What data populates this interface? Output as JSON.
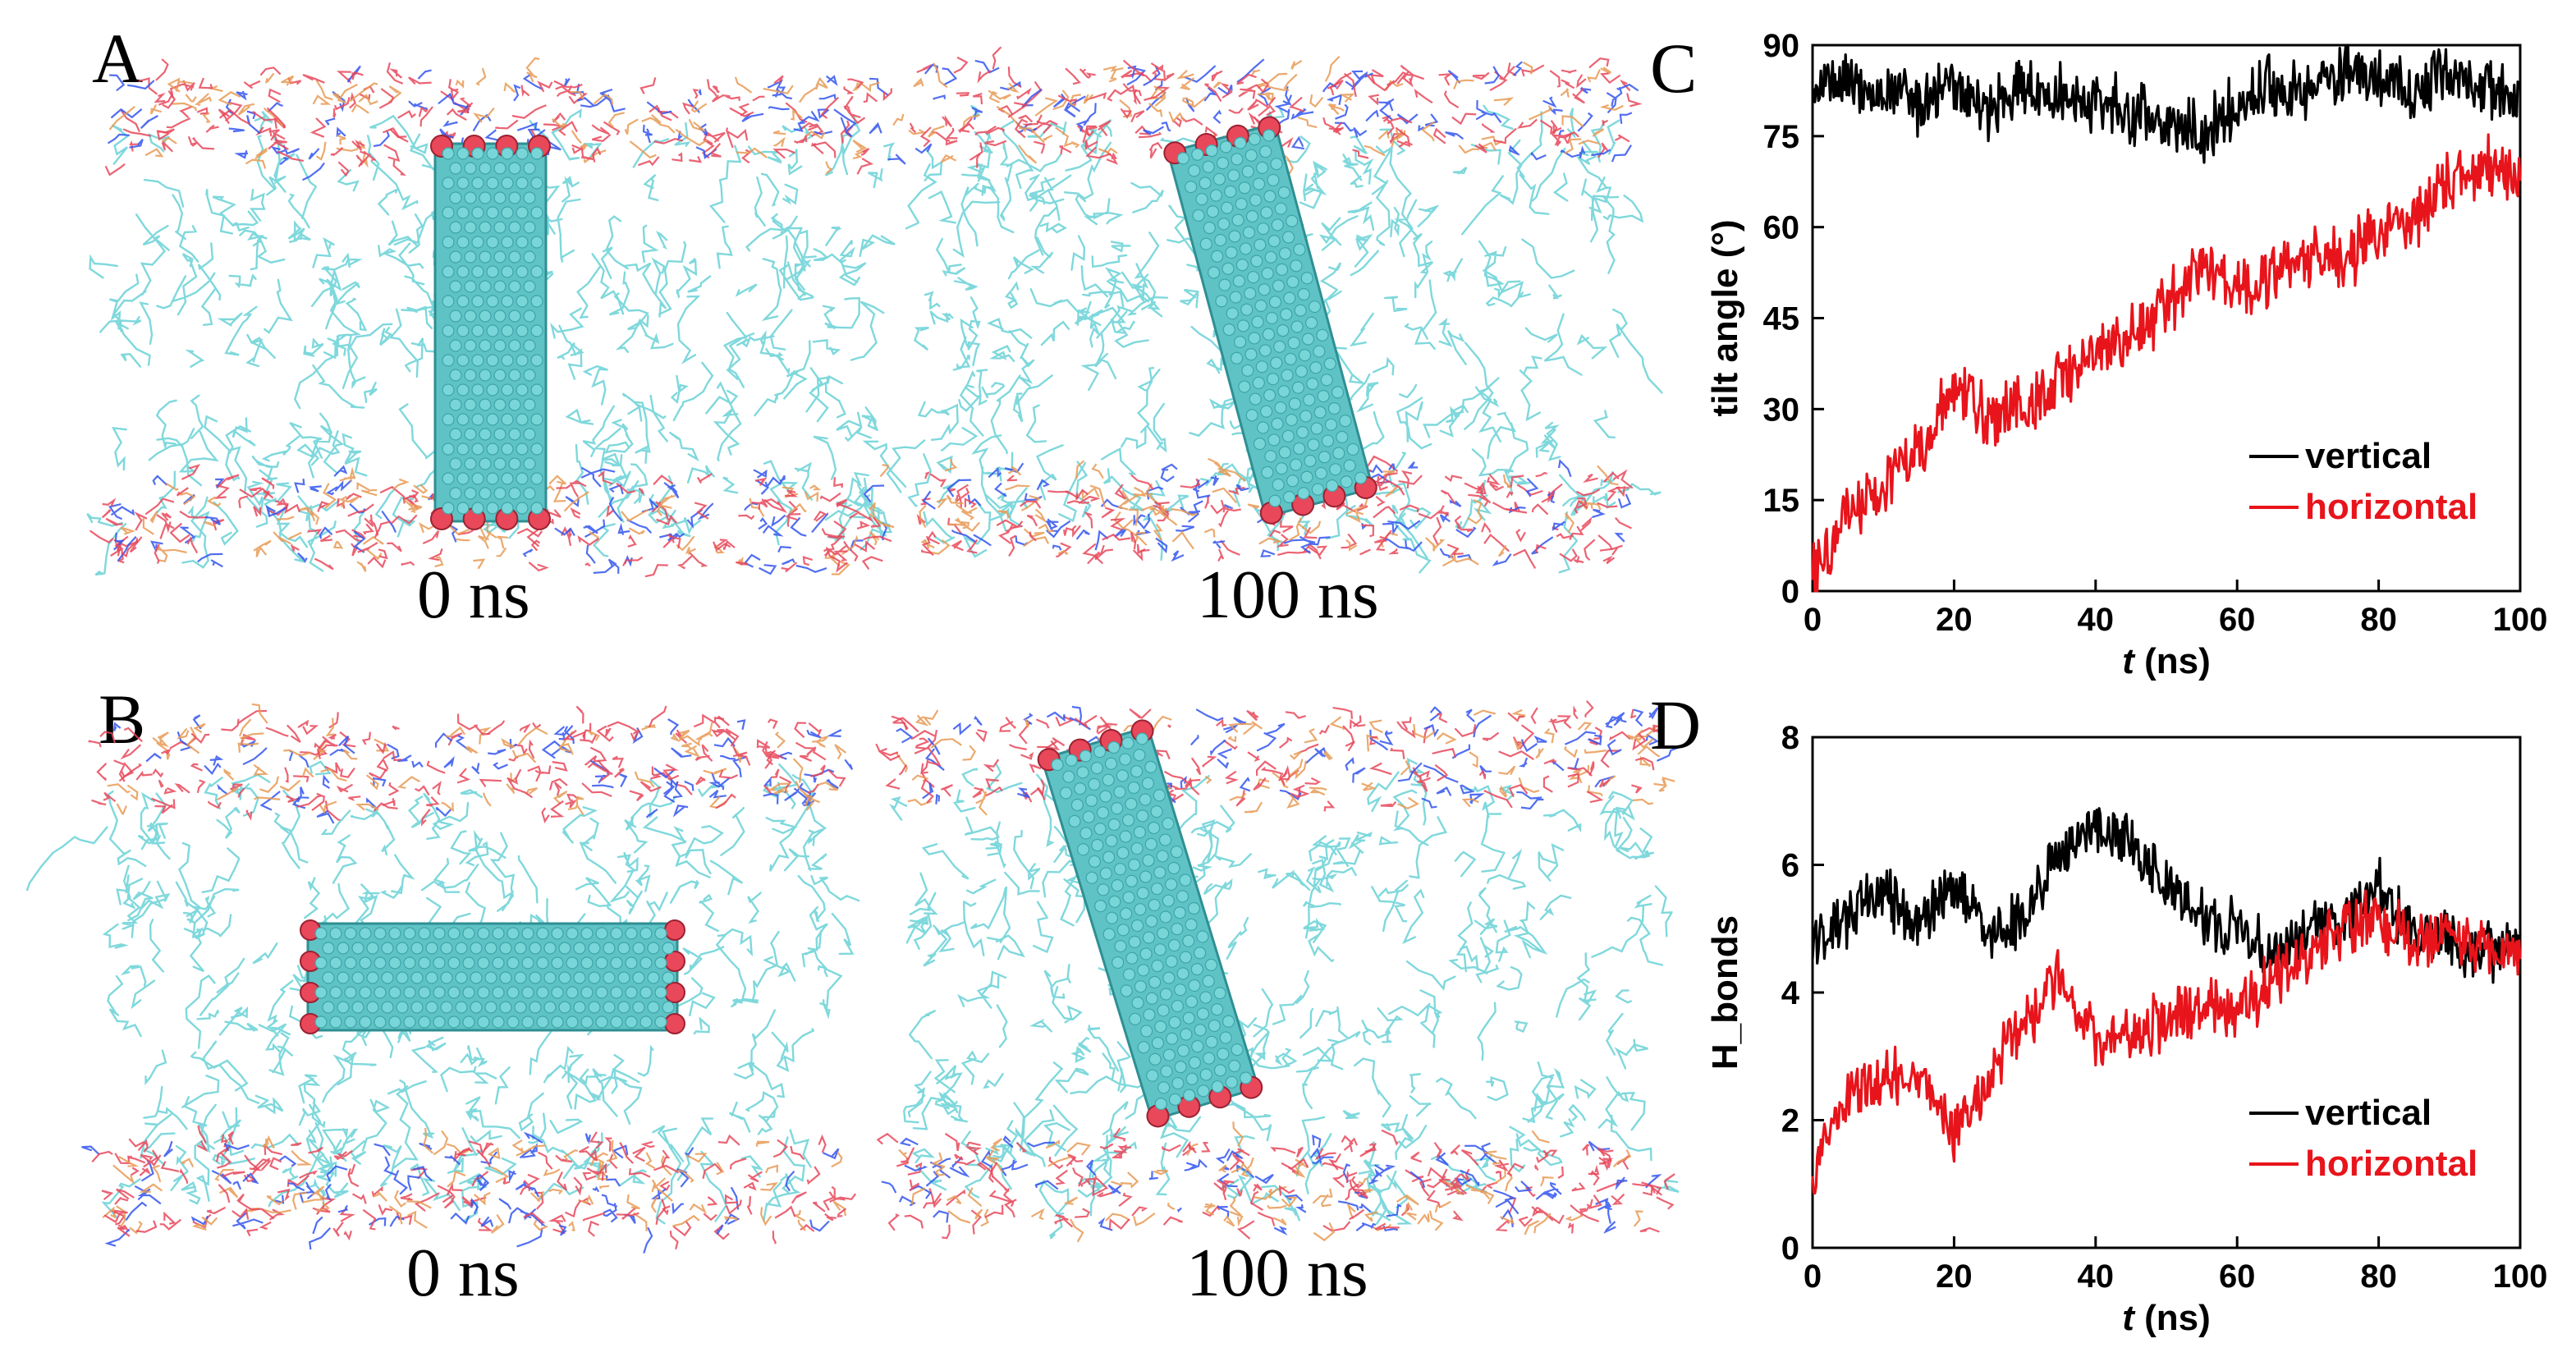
{
  "panels": {
    "A": {
      "letter": "A",
      "left_time": "0 ns",
      "right_time": "100 ns"
    },
    "B": {
      "letter": "B",
      "left_time": "0 ns",
      "right_time": "100 ns"
    }
  },
  "colors": {
    "lipid_tails": "#7fd8dc",
    "nanotube": "#5fc3c6",
    "oxygen": "#e8485a",
    "nitrogen": "#3355ee",
    "vertical": "#000000",
    "horizontal": "#e8141b"
  },
  "chart_data": [
    {
      "panel": "C",
      "type": "line",
      "xlabel_italic": "t",
      "xlabel_rest": " (ns)",
      "ylabel": "tilt angle (°)",
      "xlim": [
        0,
        100
      ],
      "ylim": [
        0,
        90
      ],
      "xticks": [
        "0",
        "20",
        "40",
        "60",
        "80",
        "100"
      ],
      "yticks": [
        "0",
        "15",
        "30",
        "45",
        "60",
        "75",
        "90"
      ],
      "legend_position": "lower-right",
      "series": [
        {
          "name": "vertical",
          "color": "#000000",
          "x": [
            0,
            5,
            10,
            15,
            20,
            25,
            30,
            35,
            40,
            45,
            50,
            55,
            60,
            65,
            70,
            75,
            80,
            85,
            90,
            95,
            100
          ],
          "y": [
            85,
            83,
            82,
            80,
            83,
            79,
            84,
            82,
            81,
            79,
            77,
            76,
            80,
            83,
            82,
            86,
            84,
            82,
            85,
            83,
            80
          ]
        },
        {
          "name": "horizontal",
          "color": "#e8141b",
          "x": [
            0,
            5,
            10,
            15,
            20,
            25,
            30,
            35,
            40,
            45,
            50,
            55,
            60,
            65,
            70,
            75,
            80,
            85,
            90,
            95,
            100
          ],
          "y": [
            2,
            13,
            17,
            23,
            33,
            28,
            31,
            35,
            38,
            43,
            47,
            54,
            51,
            52,
            56,
            55,
            59,
            62,
            67,
            70,
            68
          ]
        }
      ]
    },
    {
      "panel": "D",
      "type": "line",
      "xlabel_italic": "t",
      "xlabel_rest": " (ns)",
      "ylabel": "H_bonds",
      "xlim": [
        0,
        100
      ],
      "ylim": [
        0,
        8
      ],
      "xticks": [
        "0",
        "20",
        "40",
        "60",
        "80",
        "100"
      ],
      "yticks": [
        "0",
        "2",
        "4",
        "6",
        "8"
      ],
      "legend_position": "lower-right",
      "series": [
        {
          "name": "vertical",
          "color": "#000000",
          "x": [
            0,
            5,
            10,
            15,
            20,
            25,
            30,
            35,
            40,
            45,
            50,
            55,
            60,
            65,
            70,
            75,
            80,
            85,
            90,
            95,
            100
          ],
          "y": [
            4.8,
            5.2,
            5.6,
            5.0,
            5.8,
            4.8,
            5.2,
            6.2,
            6.6,
            6.4,
            5.6,
            5.2,
            5.0,
            4.6,
            5.0,
            5.2,
            5.6,
            5.0,
            4.8,
            4.6,
            4.8
          ]
        },
        {
          "name": "horizontal",
          "color": "#e8141b",
          "x": [
            0,
            5,
            10,
            15,
            20,
            25,
            30,
            35,
            40,
            45,
            50,
            55,
            60,
            65,
            70,
            75,
            80,
            85,
            90,
            95,
            100
          ],
          "y": [
            1.2,
            2.4,
            2.6,
            2.8,
            1.8,
            2.6,
            3.6,
            4.2,
            3.2,
            3.4,
            3.6,
            3.8,
            3.6,
            4.2,
            4.6,
            5.0,
            5.2,
            4.8,
            5.0,
            4.6,
            4.8
          ]
        }
      ]
    }
  ]
}
